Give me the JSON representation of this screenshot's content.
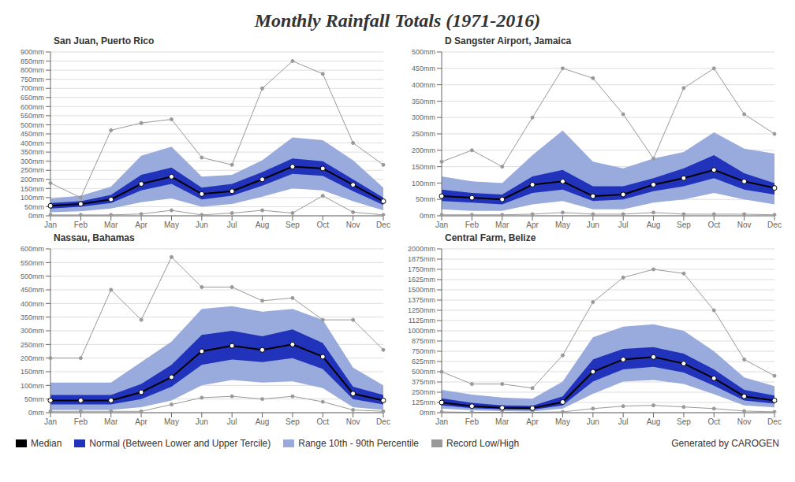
{
  "title": "Monthly Rainfall Totals (1971-2016)",
  "legend": "bottom",
  "annotations": [
    "Generated by CAROGEN"
  ],
  "chart_data": [
    {
      "type": "band",
      "title": "San Juan, Puerto Rico",
      "categories": [
        "Jan",
        "Feb",
        "Mar",
        "Apr",
        "May",
        "Jun",
        "Jul",
        "Aug",
        "Sep",
        "Oct",
        "Nov",
        "Dec"
      ],
      "ylim": [
        0,
        900
      ],
      "yticks": [
        {
          "value": 0,
          "label": "0mm"
        },
        {
          "value": 50,
          "label": "50mm"
        },
        {
          "value": 100,
          "label": "100mm"
        },
        {
          "value": 150,
          "label": "150mm"
        },
        {
          "value": 200,
          "label": "200mm"
        },
        {
          "value": 250,
          "label": "250mm"
        },
        {
          "value": 300,
          "label": "300mm"
        },
        {
          "value": 350,
          "label": "350mm"
        },
        {
          "value": 400,
          "label": "400mm"
        },
        {
          "value": 450,
          "label": "450mm"
        },
        {
          "value": 500,
          "label": "500mm"
        },
        {
          "value": 550,
          "label": "550mm"
        },
        {
          "value": 600,
          "label": "600mm"
        },
        {
          "value": 650,
          "label": "650mm"
        },
        {
          "value": 700,
          "label": "700mm"
        },
        {
          "value": 750,
          "label": "750mm"
        },
        {
          "value": 800,
          "label": "800mm"
        },
        {
          "value": 850,
          "label": "850mm"
        },
        {
          "value": 900,
          "label": "900mm"
        }
      ],
      "grid": true,
      "series": [
        {
          "name": "Median",
          "type": "line",
          "color": "#000000",
          "marker": "circle",
          "values": [
            55,
            65,
            90,
            175,
            215,
            120,
            135,
            200,
            270,
            260,
            170,
            80
          ]
        },
        {
          "name": "Normal (Between Lower and Upper Tercile)",
          "type": "band",
          "color": "#2233bb",
          "lower": [
            40,
            50,
            70,
            140,
            175,
            90,
            110,
            165,
            230,
            220,
            135,
            60
          ],
          "upper": [
            70,
            80,
            115,
            225,
            265,
            155,
            175,
            240,
            315,
            300,
            200,
            100
          ]
        },
        {
          "name": "Range 10th - 90th Percentile",
          "type": "band",
          "color": "#99aadd",
          "lower": [
            20,
            25,
            40,
            75,
            95,
            50,
            65,
            105,
            150,
            140,
            80,
            30
          ],
          "upper": [
            95,
            110,
            160,
            330,
            380,
            215,
            225,
            305,
            430,
            415,
            305,
            155
          ]
        },
        {
          "name": "Record Low/High",
          "type": "line",
          "color": "#999999",
          "marker": "circle",
          "low": [
            5,
            5,
            5,
            10,
            30,
            5,
            15,
            30,
            15,
            110,
            20,
            5
          ],
          "high": [
            180,
            100,
            470,
            510,
            530,
            320,
            280,
            700,
            850,
            780,
            400,
            280
          ]
        }
      ]
    },
    {
      "type": "band",
      "title": "D Sangster Airport, Jamaica",
      "categories": [
        "Jan",
        "Feb",
        "Mar",
        "Apr",
        "May",
        "Jun",
        "Jul",
        "Aug",
        "Sep",
        "Oct",
        "Nov",
        "Dec"
      ],
      "ylim": [
        0,
        500
      ],
      "yticks": [
        {
          "value": 0,
          "label": "0mm"
        },
        {
          "value": 50,
          "label": "50mm"
        },
        {
          "value": 100,
          "label": "100mm"
        },
        {
          "value": 150,
          "label": "150mm"
        },
        {
          "value": 200,
          "label": "200mm"
        },
        {
          "value": 250,
          "label": "250mm"
        },
        {
          "value": 300,
          "label": "300mm"
        },
        {
          "value": 350,
          "label": "350mm"
        },
        {
          "value": 400,
          "label": "400mm"
        },
        {
          "value": 450,
          "label": "450mm"
        },
        {
          "value": 500,
          "label": "500mm"
        }
      ],
      "grid": true,
      "series": [
        {
          "name": "Median",
          "type": "line",
          "color": "#000000",
          "marker": "circle",
          "values": [
            60,
            55,
            50,
            95,
            105,
            60,
            65,
            95,
            115,
            140,
            105,
            85
          ]
        },
        {
          "name": "Normal (Between Lower and Upper Tercile)",
          "type": "band",
          "color": "#2233bb",
          "lower": [
            45,
            40,
            35,
            70,
            80,
            45,
            50,
            75,
            90,
            115,
            80,
            65
          ],
          "upper": [
            80,
            70,
            65,
            120,
            140,
            90,
            90,
            115,
            145,
            185,
            130,
            100
          ]
        },
        {
          "name": "Range 10th - 90th Percentile",
          "type": "band",
          "color": "#99aadd",
          "lower": [
            20,
            15,
            15,
            35,
            45,
            20,
            20,
            40,
            50,
            70,
            50,
            35
          ],
          "upper": [
            120,
            105,
            100,
            185,
            260,
            165,
            145,
            175,
            195,
            255,
            205,
            190
          ]
        },
        {
          "name": "Record Low/High",
          "type": "line",
          "color": "#999999",
          "marker": "circle",
          "low": [
            3,
            3,
            3,
            5,
            10,
            5,
            5,
            10,
            5,
            5,
            5,
            3
          ],
          "high": [
            165,
            200,
            150,
            300,
            450,
            420,
            310,
            175,
            390,
            450,
            310,
            250
          ]
        }
      ]
    },
    {
      "type": "band",
      "title": "Nassau, Bahamas",
      "categories": [
        "Jan",
        "Feb",
        "Mar",
        "Apr",
        "May",
        "Jun",
        "Jul",
        "Aug",
        "Sep",
        "Oct",
        "Nov",
        "Dec"
      ],
      "ylim": [
        0,
        600
      ],
      "yticks": [
        {
          "value": 0,
          "label": "0mm"
        },
        {
          "value": 50,
          "label": "50mm"
        },
        {
          "value": 100,
          "label": "100mm"
        },
        {
          "value": 150,
          "label": "150mm"
        },
        {
          "value": 200,
          "label": "200mm"
        },
        {
          "value": 250,
          "label": "250mm"
        },
        {
          "value": 300,
          "label": "300mm"
        },
        {
          "value": 350,
          "label": "350mm"
        },
        {
          "value": 400,
          "label": "400mm"
        },
        {
          "value": 450,
          "label": "450mm"
        },
        {
          "value": 500,
          "label": "500mm"
        },
        {
          "value": 550,
          "label": "550mm"
        },
        {
          "value": 600,
          "label": "600mm"
        }
      ],
      "grid": true,
      "series": [
        {
          "name": "Median",
          "type": "line",
          "color": "#000000",
          "marker": "circle",
          "values": [
            45,
            45,
            45,
            75,
            130,
            225,
            245,
            230,
            250,
            205,
            70,
            45
          ]
        },
        {
          "name": "Normal (Between Lower and Upper Tercile)",
          "type": "band",
          "color": "#2233bb",
          "lower": [
            30,
            30,
            30,
            50,
            95,
            175,
            195,
            185,
            200,
            160,
            50,
            30
          ],
          "upper": [
            65,
            65,
            65,
            105,
            175,
            285,
            300,
            280,
            305,
            255,
            95,
            65
          ]
        },
        {
          "name": "Range 10th - 90th Percentile",
          "type": "band",
          "color": "#99aadd",
          "lower": [
            10,
            10,
            10,
            20,
            45,
            100,
            120,
            110,
            115,
            90,
            20,
            10
          ],
          "upper": [
            110,
            110,
            110,
            185,
            260,
            380,
            390,
            370,
            380,
            340,
            165,
            100
          ]
        },
        {
          "name": "Record Low/High",
          "type": "line",
          "color": "#999999",
          "marker": "circle",
          "low": [
            5,
            5,
            5,
            5,
            30,
            55,
            60,
            50,
            60,
            40,
            10,
            5
          ],
          "high": [
            200,
            200,
            450,
            340,
            570,
            460,
            460,
            410,
            420,
            340,
            340,
            230
          ]
        }
      ]
    },
    {
      "type": "band",
      "title": "Central Farm, Belize",
      "categories": [
        "Jan",
        "Feb",
        "Mar",
        "Apr",
        "May",
        "Jun",
        "Jul",
        "Aug",
        "Sep",
        "Oct",
        "Nov",
        "Dec"
      ],
      "ylim": [
        0,
        2000
      ],
      "yticks": [
        {
          "value": 0,
          "label": "0mm"
        },
        {
          "value": 125,
          "label": "125mm"
        },
        {
          "value": 250,
          "label": "250mm"
        },
        {
          "value": 375,
          "label": "375mm"
        },
        {
          "value": 500,
          "label": "500mm"
        },
        {
          "value": 625,
          "label": "625mm"
        },
        {
          "value": 750,
          "label": "750mm"
        },
        {
          "value": 875,
          "label": "875mm"
        },
        {
          "value": 1000,
          "label": "1000mm"
        },
        {
          "value": 1125,
          "label": "1125mm"
        },
        {
          "value": 1250,
          "label": "1250mm"
        },
        {
          "value": 1375,
          "label": "1375mm"
        },
        {
          "value": 1500,
          "label": "1500mm"
        },
        {
          "value": 1625,
          "label": "1625mm"
        },
        {
          "value": 1750,
          "label": "1750mm"
        },
        {
          "value": 1875,
          "label": "1875mm"
        },
        {
          "value": 2000,
          "label": "2000mm"
        }
      ],
      "grid": true,
      "series": [
        {
          "name": "Median",
          "type": "line",
          "color": "#000000",
          "marker": "circle",
          "values": [
            125,
            80,
            60,
            55,
            130,
            500,
            650,
            680,
            600,
            420,
            200,
            150
          ]
        },
        {
          "name": "Normal (Between Lower and Upper Tercile)",
          "type": "band",
          "color": "#2233bb",
          "lower": [
            90,
            55,
            40,
            35,
            90,
            380,
            530,
            560,
            490,
            330,
            150,
            110
          ],
          "upper": [
            175,
            120,
            90,
            85,
            200,
            650,
            780,
            800,
            720,
            530,
            280,
            210
          ]
        },
        {
          "name": "Range 10th - 90th Percentile",
          "type": "band",
          "color": "#99aadd",
          "lower": [
            50,
            30,
            20,
            15,
            50,
            230,
            380,
            400,
            350,
            225,
            90,
            65
          ],
          "upper": [
            280,
            220,
            185,
            170,
            380,
            920,
            1050,
            1080,
            1000,
            750,
            430,
            325
          ]
        },
        {
          "name": "Record Low/High",
          "type": "line",
          "color": "#999999",
          "marker": "circle",
          "low": [
            10,
            5,
            5,
            5,
            10,
            50,
            80,
            90,
            70,
            50,
            20,
            10
          ],
          "high": [
            500,
            350,
            350,
            300,
            700,
            1350,
            1650,
            1750,
            1700,
            1250,
            650,
            450
          ]
        }
      ]
    }
  ]
}
